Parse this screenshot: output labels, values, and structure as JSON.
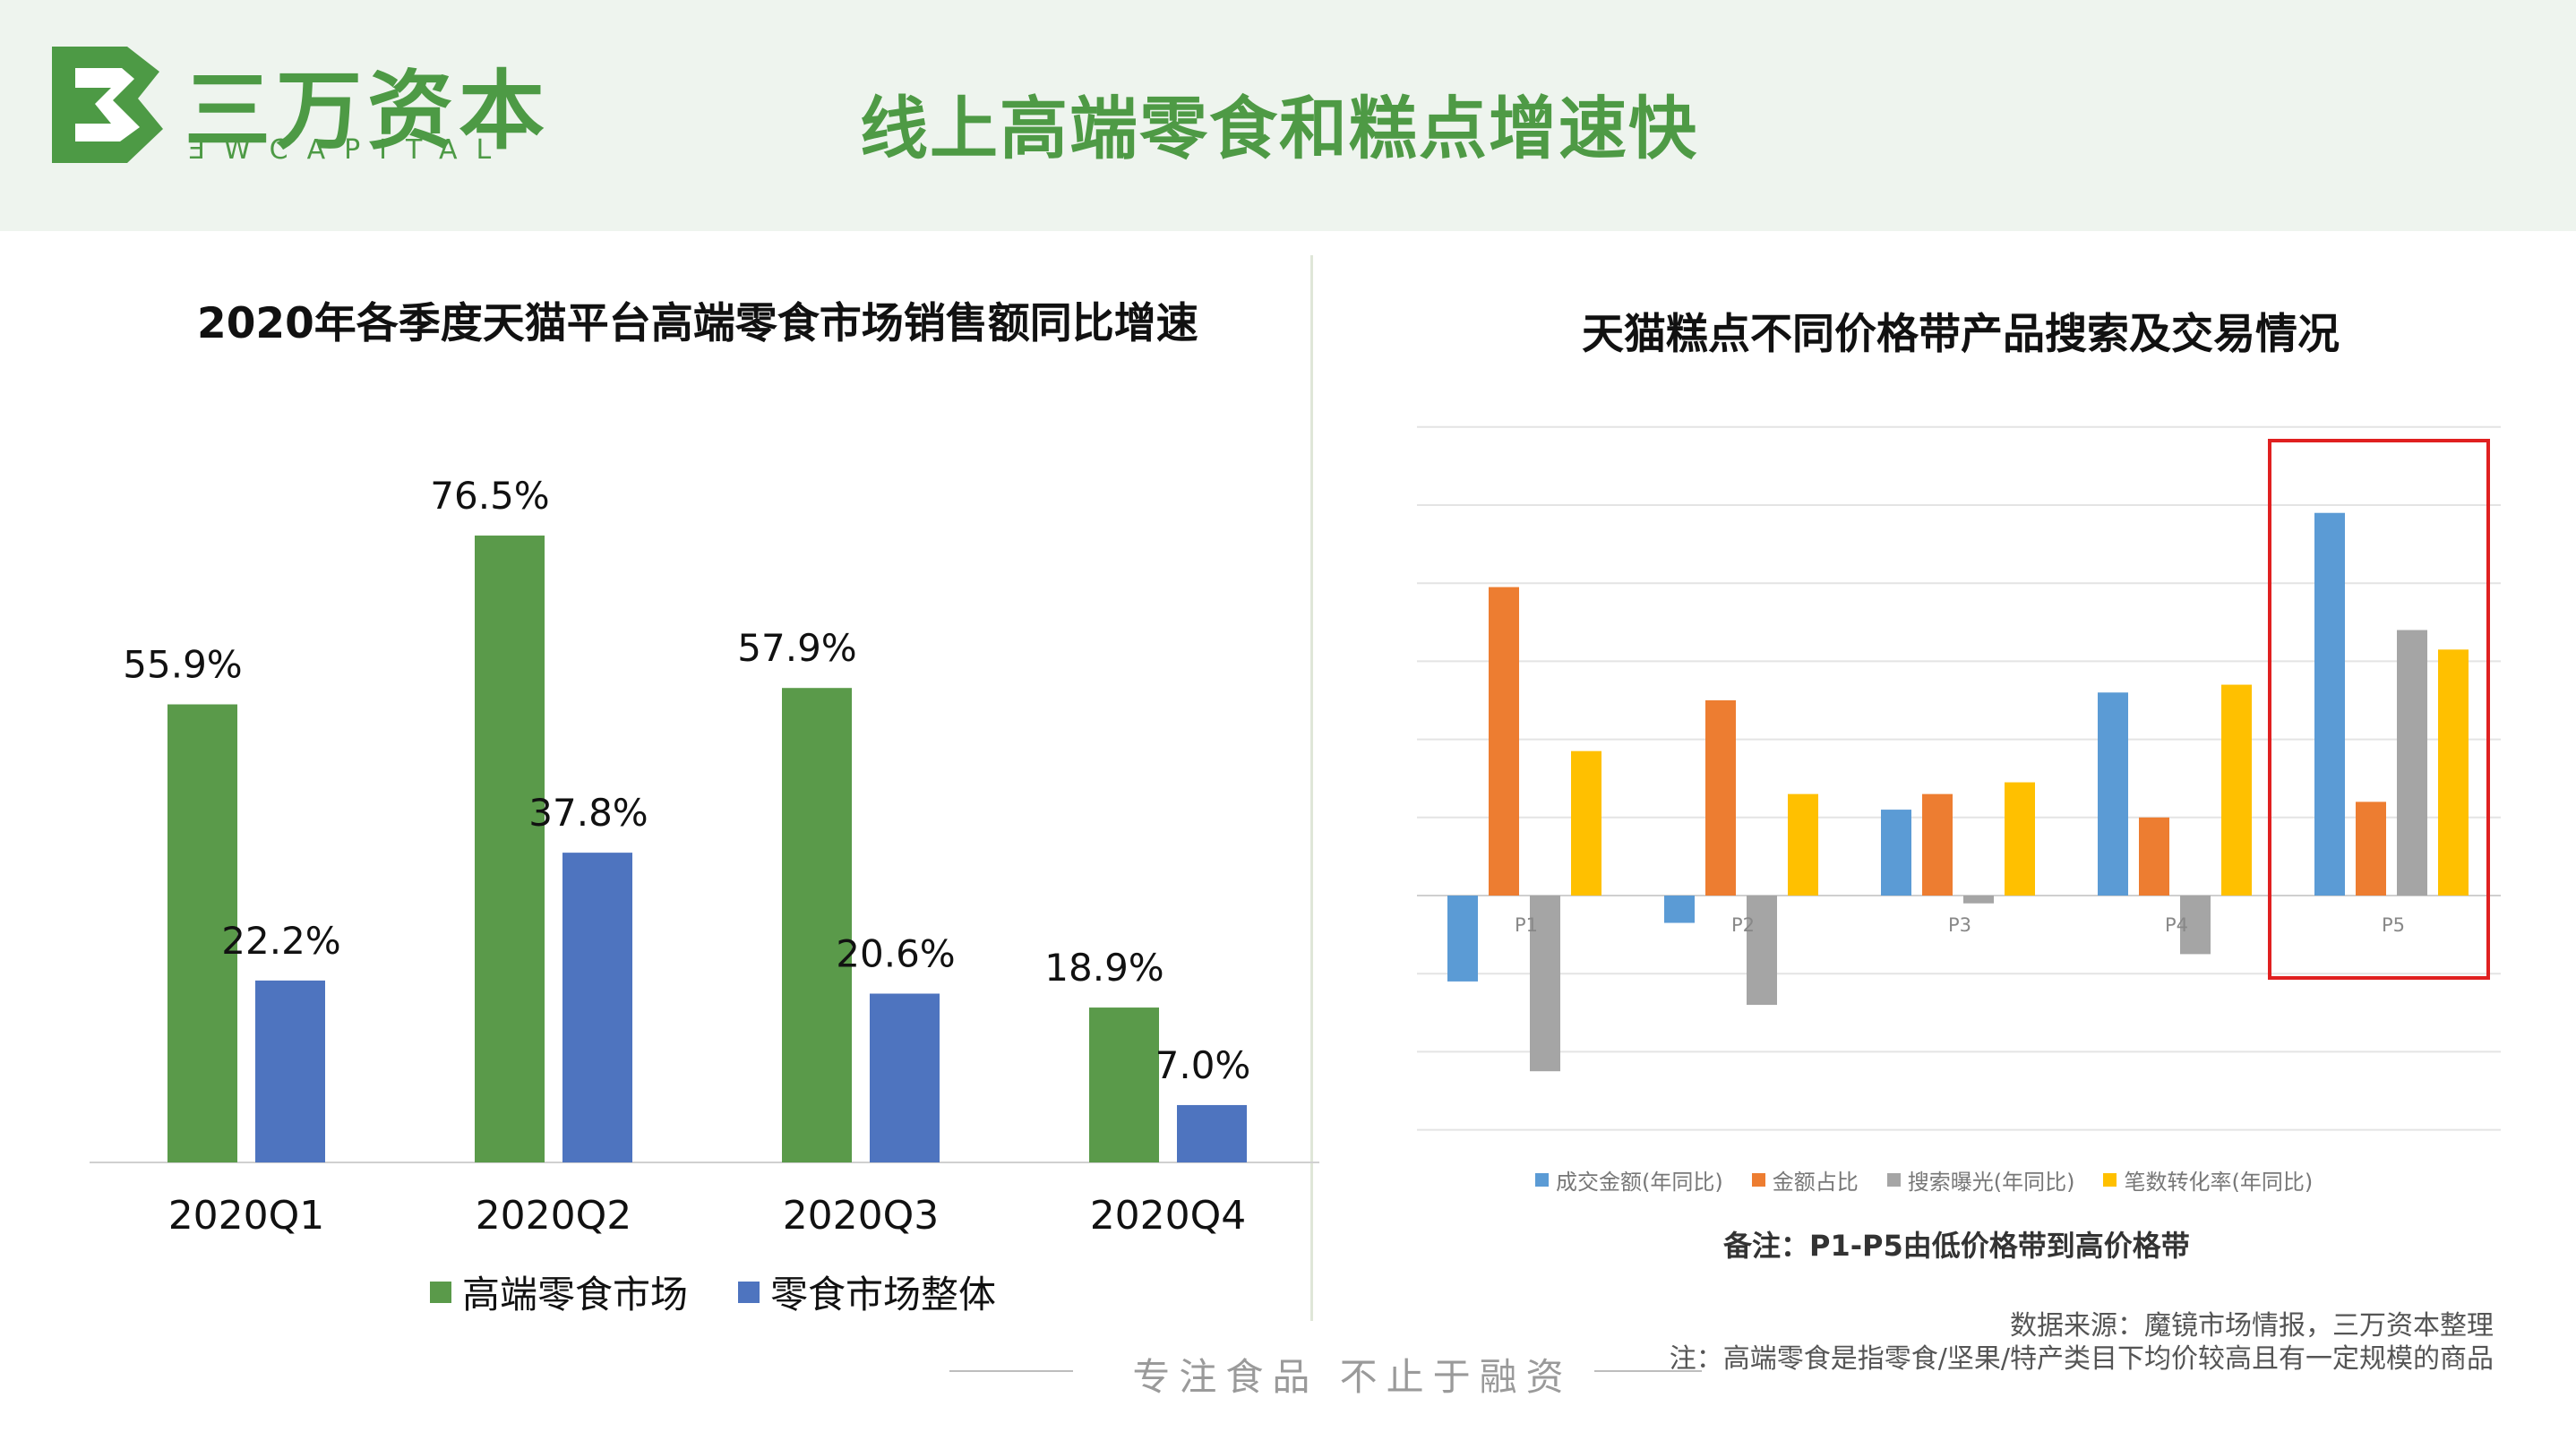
{
  "header": {
    "logo_cn": "三万资本",
    "logo_en": "ƎWCAPITAL",
    "title": "线上高端零食和糕点增速快"
  },
  "colors": {
    "brand_green": "#4d9a45",
    "bar_green": "#5a9a4a",
    "bar_blue": "#4e74bf",
    "s_blue": "#5b9bd5",
    "s_orange": "#ed7d31",
    "s_gray": "#a5a5a5",
    "s_yellow": "#ffc000",
    "highlight_red": "#e02020"
  },
  "chart_data": [
    {
      "type": "bar",
      "title": "2020年各季度天猫平台高端零食市场销售额同比增速",
      "categories": [
        "2020Q1",
        "2020Q2",
        "2020Q3",
        "2020Q4"
      ],
      "series": [
        {
          "name": "高端零食市场",
          "values": [
            55.9,
            76.5,
            57.9,
            18.9
          ],
          "labels": [
            "55.9%",
            "76.5%",
            "57.9%",
            "18.9%"
          ]
        },
        {
          "name": "零食市场整体",
          "values": [
            22.2,
            37.8,
            20.6,
            7.0
          ],
          "labels": [
            "22.2%",
            "37.8%",
            "20.6%",
            "7.0%"
          ]
        }
      ],
      "ylim": [
        0,
        85
      ],
      "grid": false,
      "legend": "bottom"
    },
    {
      "type": "bar",
      "title": "天猫糕点不同价格带产品搜索及交易情况",
      "categories": [
        "P1",
        "P2",
        "P3",
        "P4",
        "P5"
      ],
      "series": [
        {
          "name": "成交金额(年同比)",
          "values": [
            -1.1,
            -0.35,
            1.1,
            2.6,
            4.9
          ]
        },
        {
          "name": "金额占比",
          "values": [
            3.95,
            2.5,
            1.3,
            1.0,
            1.2
          ]
        },
        {
          "name": "搜索曝光(年同比)",
          "values": [
            -2.25,
            -1.4,
            -0.1,
            -0.75,
            3.4
          ]
        },
        {
          "name": "笔数转化率(年同比)",
          "values": [
            1.85,
            1.3,
            1.45,
            2.7,
            3.15
          ]
        }
      ],
      "ylim": [
        -3,
        6
      ],
      "grid": true,
      "legend": "bottom",
      "highlight": "P5",
      "note": "备注：P1-P5由低价格带到高价格带"
    }
  ],
  "footer": {
    "source": "数据来源：魔镜市场情报，三万资本整理",
    "footnote": "注：高端零食是指零食/坚果/特产类目下均价较高且有一定规模的商品",
    "slogan": "专注食品  不止于融资"
  }
}
